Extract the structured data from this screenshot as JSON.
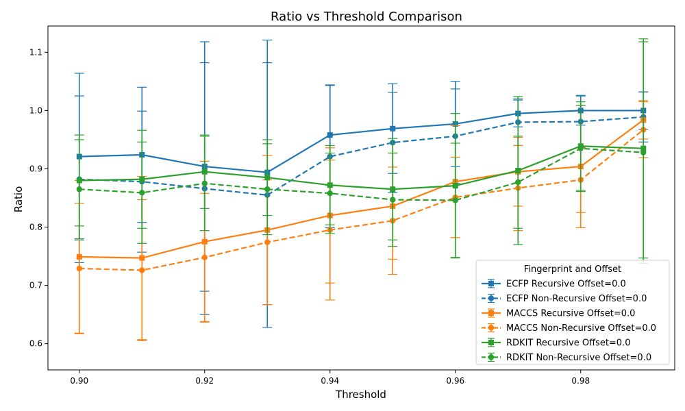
{
  "chart_data": {
    "type": "line",
    "title": "Ratio vs Threshold Comparison",
    "xlabel": "Threshold",
    "ylabel": "Ratio",
    "xlim": [
      0.895,
      0.995
    ],
    "ylim": [
      0.555,
      1.145
    ],
    "xticks": [
      0.9,
      0.92,
      0.94,
      0.96,
      0.98
    ],
    "xtick_labels": [
      "0.90",
      "0.92",
      "0.94",
      "0.96",
      "0.98"
    ],
    "yticks": [
      0.6,
      0.7,
      0.8,
      0.9,
      1.0,
      1.1
    ],
    "ytick_labels": [
      "0.6",
      "0.7",
      "0.8",
      "0.9",
      "1.0",
      "1.1"
    ],
    "grid": false,
    "legend": {
      "title": "Fingerprint and Offset",
      "placement": "lower-right"
    },
    "x": [
      0.9,
      0.91,
      0.92,
      0.93,
      0.94,
      0.95,
      0.96,
      0.97,
      0.98,
      0.99
    ],
    "series": [
      {
        "name": "ECFP Recursive Offset=0.0",
        "color": "#1f77b4",
        "style": "solid",
        "marker": "square",
        "values": [
          0.921,
          0.924,
          0.904,
          0.894,
          0.958,
          0.969,
          0.977,
          0.995,
          1.0,
          1.0
        ],
        "errors": [
          0.143,
          0.116,
          0.214,
          0.227,
          0.086,
          0.077,
          0.073,
          0.023,
          0.025,
          0.032
        ]
      },
      {
        "name": "ECFP Non-Recursive Offset=0.0",
        "color": "#1f77b4",
        "style": "dashed",
        "marker": "circle",
        "values": [
          0.882,
          0.878,
          0.866,
          0.855,
          0.921,
          0.945,
          0.956,
          0.98,
          0.981,
          0.989
        ],
        "errors": [
          0.143,
          0.121,
          0.216,
          0.227,
          0.122,
          0.086,
          0.081,
          0.04,
          0.045,
          0.043
        ]
      },
      {
        "name": "MACCS Recursive Offset=0.0",
        "color": "#ff7f0e",
        "style": "solid",
        "marker": "square",
        "values": [
          0.749,
          0.747,
          0.775,
          0.795,
          0.82,
          0.836,
          0.878,
          0.895,
          0.904,
          0.984
        ],
        "errors": [
          0.131,
          0.14,
          0.138,
          0.128,
          0.116,
          0.091,
          0.096,
          0.059,
          0.105,
          0.033
        ]
      },
      {
        "name": "MACCS Non-Recursive Offset=0.0",
        "color": "#ff7f0e",
        "style": "dashed",
        "marker": "circle",
        "values": [
          0.729,
          0.726,
          0.748,
          0.774,
          0.795,
          0.811,
          0.851,
          0.867,
          0.881,
          0.967
        ],
        "errors": [
          0.112,
          0.121,
          0.11,
          0.107,
          0.12,
          0.092,
          0.069,
          0.073,
          0.056,
          0.048
        ]
      },
      {
        "name": "RDKIT Recursive Offset=0.0",
        "color": "#2ca02c",
        "style": "solid",
        "marker": "square",
        "values": [
          0.88,
          0.882,
          0.895,
          0.885,
          0.872,
          0.865,
          0.871,
          0.897,
          0.939,
          0.935
        ],
        "errors": [
          0.078,
          0.084,
          0.063,
          0.065,
          0.068,
          0.087,
          0.124,
          0.127,
          0.076,
          0.188
        ]
      },
      {
        "name": "RDKIT Non-Recursive Offset=0.0",
        "color": "#2ca02c",
        "style": "dashed",
        "marker": "circle",
        "values": [
          0.865,
          0.859,
          0.875,
          0.865,
          0.858,
          0.847,
          0.846,
          0.877,
          0.935,
          0.928
        ],
        "errors": [
          0.085,
          0.087,
          0.081,
          0.078,
          0.069,
          0.08,
          0.098,
          0.079,
          0.074,
          0.19
        ]
      }
    ]
  }
}
